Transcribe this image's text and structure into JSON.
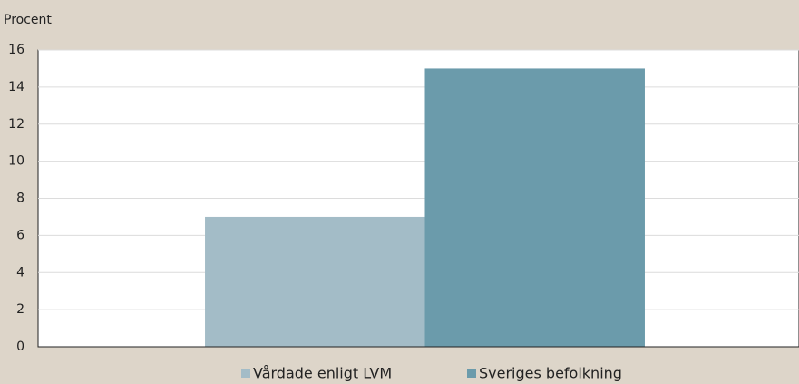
{
  "chart_data": {
    "type": "bar",
    "y_label": "Procent",
    "categories": [
      null
    ],
    "series": [
      {
        "name": "Vårdade enligt LVM",
        "color": "#a3bcc7",
        "values": [
          7
        ]
      },
      {
        "name": "Sveriges befolkning",
        "color": "#6b9bab",
        "values": [
          15
        ]
      }
    ],
    "ylim": [
      0,
      16
    ],
    "yticks": [
      0,
      2,
      4,
      6,
      8,
      10,
      12,
      14,
      16
    ],
    "grid": true,
    "legend": "bottom"
  }
}
